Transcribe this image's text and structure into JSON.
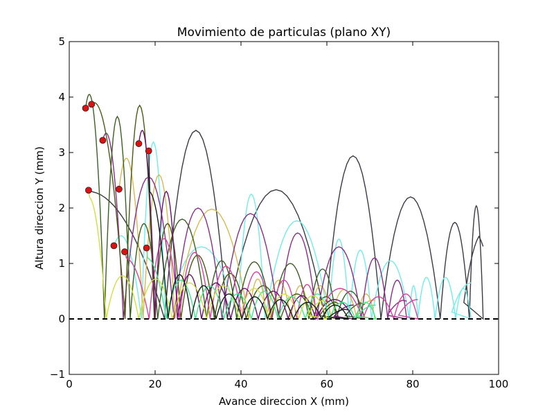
{
  "chart_data": {
    "type": "line",
    "title": "Movimiento de particulas (plano XY)",
    "xlabel": "Avance direccion X (mm)",
    "ylabel": "Altura direccion Y (mm)",
    "xlim": [
      0,
      100
    ],
    "ylim": [
      -1,
      5
    ],
    "xticks": [
      0,
      20,
      40,
      60,
      80,
      100
    ],
    "xtick_labels": [
      "0",
      "20",
      "40",
      "60",
      "80",
      "100"
    ],
    "yticks": [
      -1,
      0,
      1,
      2,
      3,
      4,
      5
    ],
    "ytick_labels": [
      "−1",
      "0",
      "1",
      "2",
      "3",
      "4",
      "5"
    ],
    "grid": false,
    "legend": "none",
    "baseline": {
      "y": 0,
      "style": "dashed",
      "color": "#000000"
    },
    "start_points": {
      "color": "#dd1111",
      "points": [
        {
          "x": 3.8,
          "y": 3.8
        },
        {
          "x": 5.2,
          "y": 3.87
        },
        {
          "x": 7.8,
          "y": 3.22
        },
        {
          "x": 4.5,
          "y": 2.32
        },
        {
          "x": 11.6,
          "y": 2.34
        },
        {
          "x": 16.2,
          "y": 3.16
        },
        {
          "x": 18.5,
          "y": 3.03
        },
        {
          "x": 10.4,
          "y": 1.32
        },
        {
          "x": 12.9,
          "y": 1.21
        },
        {
          "x": 18.0,
          "y": 1.28
        }
      ]
    },
    "series": [
      {
        "color": "#3a3a44",
        "start": [
          4.4,
          2.33
        ],
        "arcs": [
          [
            4.4,
            2.3
          ],
          [
            22.2,
            3.4
          ],
          [
            36.8,
            2.33
          ],
          [
            59.6,
            2.94
          ],
          [
            72.6,
            2.2
          ],
          [
            86.4,
            1.74
          ],
          [
            93.2,
            2.04
          ],
          [
            96.4,
            1.55
          ]
        ],
        "end_y": 0.33
      },
      {
        "color": "#70ecec",
        "start": [
          10.4,
          1.32
        ],
        "arcs": [
          [
            10.4,
            1.5
          ],
          [
            16.8,
            3.19
          ],
          [
            22.4,
            1.3
          ],
          [
            39.2,
            2.25
          ],
          [
            45.6,
            1.77
          ],
          [
            60.4,
            1.44
          ],
          [
            65.2,
            1.24
          ],
          [
            70.4,
            1.05
          ],
          [
            79.2,
            0.6
          ],
          [
            81.2,
            0.75
          ],
          [
            85.2,
            0.75
          ],
          [
            90.0,
            0.55
          ],
          [
            93.6,
            0.65
          ]
        ],
        "end_y": 0.65
      },
      {
        "color": "#d8b850",
        "start": [
          11.6,
          2.34
        ],
        "arcs": [
          [
            11.6,
            2.9
          ],
          [
            17.2,
            2.6
          ],
          [
            24.6,
            1.98
          ],
          [
            41.8,
            0.72
          ],
          [
            46.0,
            0.7
          ],
          [
            51.6,
            0.6
          ],
          [
            56.0,
            0.6
          ],
          [
            61.0,
            0.53
          ],
          [
            67.0,
            0.45
          ],
          [
            71.2,
            0.35
          ]
        ],
        "end_y": 0.28
      },
      {
        "color": "#8a2c8a",
        "start": [
          7.8,
          3.22
        ],
        "arcs": [
          [
            7.8,
            3.35
          ],
          [
            12.6,
            2.56
          ],
          [
            24.4,
            2.0
          ],
          [
            35.6,
            1.9
          ],
          [
            48.8,
            1.55
          ],
          [
            57.6,
            1.3
          ],
          [
            68.0,
            1.1
          ],
          [
            74.2,
            0.7
          ],
          [
            78.6,
            0.35
          ]
        ],
        "end_y": 0.2
      },
      {
        "color": "#3a6020",
        "start": [
          3.8,
          3.8
        ],
        "arcs": [
          [
            3.8,
            4.05
          ],
          [
            8.2,
            3.65
          ],
          [
            14.2,
            1.72
          ],
          [
            20.6,
            1.8
          ],
          [
            32.0,
            1.05
          ],
          [
            39.0,
            1.03
          ],
          [
            47.2,
            1.0
          ],
          [
            55.8,
            0.9
          ],
          [
            62.2,
            0.5
          ],
          [
            68.8,
            0.3
          ]
        ],
        "end_y": 0.1
      },
      {
        "color": "#4a5a10",
        "start": [
          5.2,
          3.87
        ],
        "arcs": [
          [
            5.2,
            3.9
          ],
          [
            13.0,
            3.85
          ],
          [
            19.8,
            1.72
          ],
          [
            26.0,
            1.15
          ],
          [
            33.8,
            0.82
          ],
          [
            41.2,
            0.6
          ],
          [
            49.2,
            0.45
          ],
          [
            56.8,
            0.4
          ],
          [
            62.8,
            0.32
          ]
        ],
        "end_y": 0.05
      },
      {
        "color": "#d840a0",
        "start": [
          13.0,
          1.21
        ],
        "arcs": [
          [
            13.0,
            1.1
          ],
          [
            18.6,
            1.45
          ],
          [
            25.6,
            1.2
          ],
          [
            32.8,
            0.95
          ],
          [
            40.2,
            0.85
          ],
          [
            47.0,
            0.7
          ],
          [
            53.0,
            0.62
          ],
          [
            57.8,
            0.55
          ],
          [
            68.4,
            0.4
          ],
          [
            75.6,
            0.45
          ],
          [
            81.2,
            0.35
          ]
        ],
        "end_y": 0.35
      },
      {
        "color": "#6a1070",
        "start": [
          16.2,
          3.16
        ],
        "arcs": [
          [
            16.2,
            3.4
          ],
          [
            20.0,
            2.3
          ],
          [
            25.2,
            0.8
          ],
          [
            30.8,
            0.65
          ],
          [
            37.6,
            0.55
          ],
          [
            44.0,
            0.5
          ],
          [
            51.0,
            0.42
          ],
          [
            57.4,
            0.35
          ],
          [
            66.2,
            0.25
          ]
        ],
        "end_y": 0.25
      },
      {
        "color": "#40e890",
        "start": [
          18.0,
          1.28
        ],
        "arcs": [
          [
            18.0,
            1.1
          ],
          [
            22.6,
            0.7
          ],
          [
            29.4,
            0.6
          ],
          [
            36.0,
            0.45
          ],
          [
            42.4,
            0.5
          ],
          [
            48.6,
            0.4
          ],
          [
            55.0,
            0.45
          ],
          [
            60.6,
            0.3
          ],
          [
            66.6,
            0.3
          ],
          [
            71.4,
            0.25
          ]
        ],
        "end_y": 0.25
      },
      {
        "color": "#d0e040",
        "start": [
          4.5,
          2.32
        ],
        "arcs": [
          [
            4.5,
            2.2
          ],
          [
            8.6,
            0.78
          ],
          [
            16.2,
            0.72
          ],
          [
            24.0,
            0.65
          ],
          [
            32.0,
            0.6
          ],
          [
            39.6,
            0.55
          ],
          [
            46.6,
            0.45
          ],
          [
            53.4,
            0.42
          ],
          [
            60.0,
            0.35
          ]
        ],
        "end_y": 0.05
      },
      {
        "color": "#102018",
        "start": [
          18.5,
          3.03
        ],
        "arcs": [
          [
            18.5,
            2.3
          ],
          [
            23.0,
            0.8
          ],
          [
            28.4,
            0.6
          ],
          [
            34.2,
            0.45
          ],
          [
            40.2,
            0.4
          ],
          [
            46.2,
            0.35
          ],
          [
            52.2,
            0.3
          ],
          [
            58.8,
            0.25
          ],
          [
            65.0,
            0.18
          ]
        ],
        "end_y": 0.1
      }
    ]
  }
}
